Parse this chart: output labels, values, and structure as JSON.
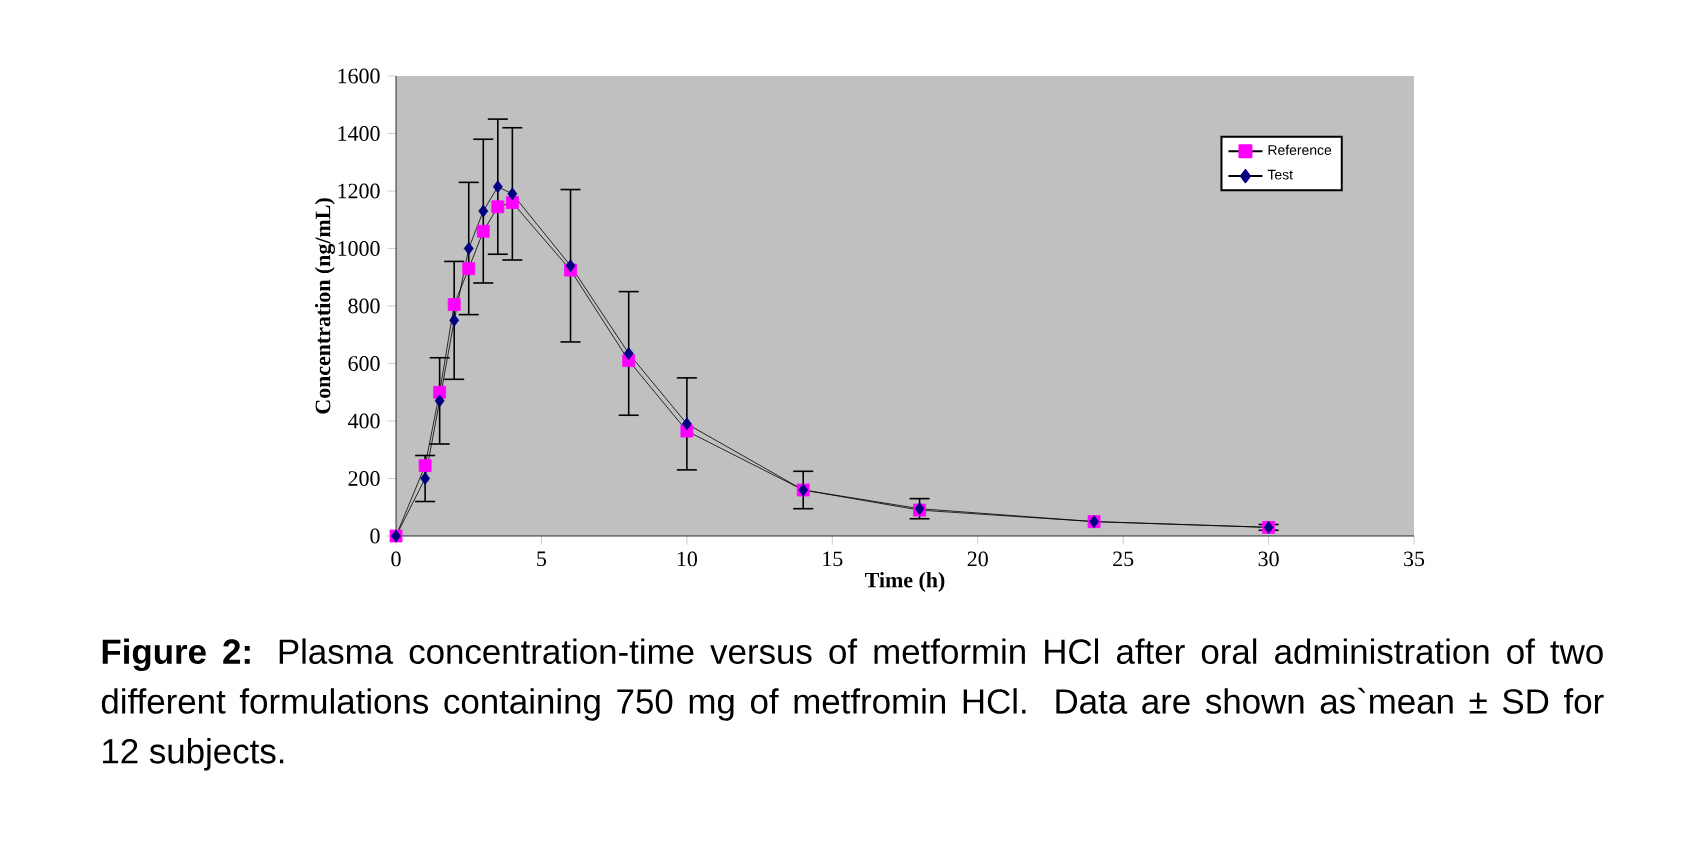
{
  "chart_data": {
    "type": "line",
    "xlabel": "Time (h)",
    "ylabel": "Concentration (ng/mL)",
    "annotations": [
      "**Figure 2:** Plasma concentration-time versus of metformin HCl after oral administration of two different formulations containing 750 mg of metfromin HCl. Data are shown as`mean ± SD for 12 subjects."
    ],
    "x": [
      0,
      1,
      1.5,
      2,
      2.5,
      3,
      3.5,
      4,
      6,
      8,
      10,
      14,
      18,
      24,
      30
    ],
    "series": [
      {
        "name": "Reference",
        "color": "#ff00ff",
        "marker": "square",
        "values": [
          0,
          245,
          500,
          805,
          930,
          1060,
          1145,
          1160,
          925,
          610,
          365,
          160,
          90,
          50,
          30
        ]
      },
      {
        "name": "Test",
        "color": "#000080",
        "marker": "diamond",
        "values": [
          0,
          200,
          470,
          750,
          1000,
          1130,
          1215,
          1190,
          940,
          635,
          390,
          160,
          95,
          50,
          30
        ],
        "errors": [
          null,
          80,
          150,
          205,
          230,
          250,
          235,
          230,
          265,
          215,
          160,
          65,
          35,
          null,
          10
        ]
      }
    ],
    "xlim": [
      0,
      35
    ],
    "xticks": [
      0,
      5,
      10,
      15,
      20,
      25,
      30,
      35
    ],
    "ylim": [
      0,
      1600
    ],
    "yticks": [
      0,
      200,
      400,
      600,
      800,
      1000,
      1200,
      1400,
      1600
    ],
    "grid": false,
    "legend": "top right",
    "line_style": "solid"
  }
}
